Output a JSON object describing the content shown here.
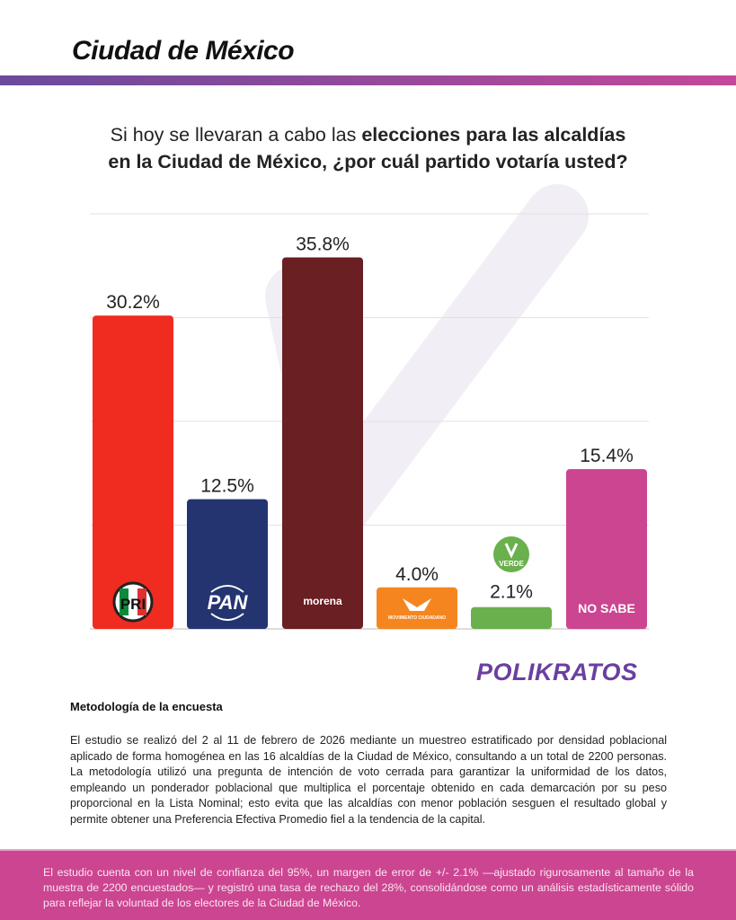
{
  "header": {
    "title": "Ciudad de México"
  },
  "question": {
    "normal": "Si hoy se llevaran a cabo las ",
    "bold1": "elecciones para las alcaldías",
    "bold2": "en la Ciudad de México, ¿por cuál partido votaría usted?"
  },
  "chart_data": {
    "type": "bar",
    "title": "Si hoy se llevaran a cabo las elecciones para las alcaldías en la Ciudad de México, ¿por cuál partido votaría usted?",
    "categories": [
      "PRI",
      "PAN",
      "morena",
      "MOVIMIENTO CIUDADANO",
      "VERDE",
      "NO SABE"
    ],
    "values": [
      30.2,
      12.5,
      35.8,
      4.0,
      2.1,
      15.4
    ],
    "labels": [
      "30.2%",
      "12.5%",
      "35.8%",
      "4.0%",
      "2.1%",
      "15.4%"
    ],
    "colors": [
      "#f02b20",
      "#233470",
      "#6a1f22",
      "#f5861f",
      "#6ab04c",
      "#cc4590"
    ],
    "ylim": [
      0,
      40
    ],
    "gridlines": [
      10,
      20,
      30,
      40
    ],
    "grid": true,
    "xlabel": "",
    "ylabel": ""
  },
  "brand": {
    "name": "POLIKRATOS"
  },
  "methodology": {
    "title": "Metodología de la encuesta",
    "text": "El estudio se realizó del 2 al 11 de febrero de 2026 mediante un muestreo estratificado por densidad poblacional aplicado de forma homogénea en las 16 alcaldías de la Ciudad de México, consultando a un total de 2200 personas. La metodología utilizó una pregunta de intención de voto cerrada para garantizar la uniformidad de los datos, empleando un ponderador poblacional que multiplica el porcentaje obtenido en cada demarcación por su peso proporcional en la Lista Nominal; esto evita que las alcaldías con menor población sesguen el resultado global y permite obtener una Preferencia Efectiva Promedio fiel a la tendencia de la capital."
  },
  "footer": {
    "text": "El estudio cuenta con un nivel de confianza del 95%, un margen de error de +/- 2.1% —ajustado rigurosamente al tamaño de la muestra de 2200 encuestados— y registró una tasa de rechazo del 28%, consolidándose como un análisis estadísticamente sólido para reflejar la voluntad de los electores de la Ciudad de México."
  }
}
